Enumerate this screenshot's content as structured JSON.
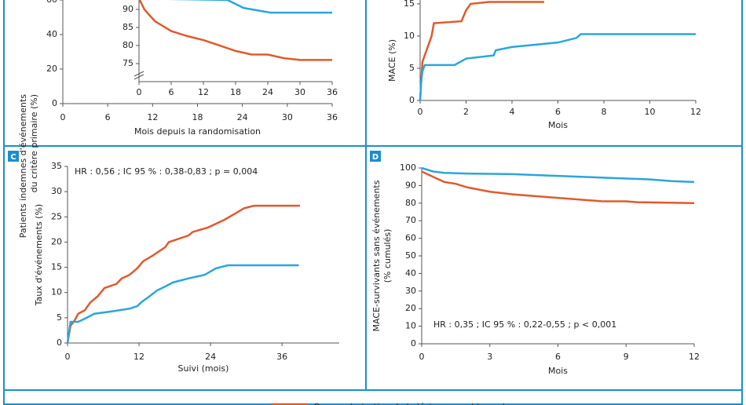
{
  "chart_data": [
    {
      "type": "line",
      "panel": "A",
      "ylabel": [
        "Patients indemnes d'événements",
        "du critère primaire (%)"
      ],
      "xlabel": "Mois depuis la randomisation",
      "xlim": [
        0,
        36
      ],
      "xticks": [
        0,
        6,
        12,
        18,
        24,
        30,
        36
      ],
      "ylim": [
        0,
        60
      ],
      "yticks": [
        0,
        20,
        40,
        60
      ],
      "series": []
    },
    {
      "type": "line",
      "panel": "A-inset",
      "xlim": [
        0,
        36
      ],
      "xticks": [
        0,
        6,
        12,
        18,
        24,
        30,
        36
      ],
      "ylim": [
        70,
        92.6
      ],
      "yticks": [
        75,
        80,
        85,
        90
      ],
      "series": [
        {
          "color": "#e05a2b",
          "x": [
            0,
            1,
            2,
            3,
            6,
            9,
            12,
            15,
            18,
            21,
            24,
            27,
            30,
            36
          ],
          "values": [
            93,
            90,
            88.3,
            86.7,
            84,
            82.6,
            81.5,
            80,
            78.5,
            77.5,
            77.5,
            76.5,
            76,
            76
          ]
        },
        {
          "color": "#2aa6dc",
          "x": [
            0,
            16.5,
            19.5,
            24.5,
            36
          ],
          "values": [
            93,
            92.6,
            90.4,
            89.1,
            89.1
          ]
        }
      ]
    },
    {
      "type": "line",
      "panel": "B",
      "ylabel": [
        "MACE (%)"
      ],
      "xlabel": "Mois",
      "xlim": [
        0,
        12
      ],
      "xticks": [
        0,
        2,
        4,
        6,
        8,
        10,
        12
      ],
      "ylim": [
        0,
        15.6
      ],
      "yticks": [
        0,
        5,
        10,
        15
      ],
      "series": [
        {
          "color": "#e05a2b",
          "x": [
            0,
            0.05,
            0.1,
            0.2,
            0.3,
            0.4,
            0.5,
            0.6,
            1.8,
            2,
            2.2,
            3,
            5.4
          ],
          "values": [
            0,
            3,
            6,
            7,
            8,
            9,
            10,
            12,
            12.3,
            14,
            15,
            15.3,
            15.3
          ]
        },
        {
          "color": "#2aa6dc",
          "x": [
            0,
            0.05,
            0.1,
            0.2,
            1.5,
            2,
            3.2,
            3.3,
            4,
            6,
            6.8,
            7,
            12
          ],
          "values": [
            0,
            3,
            4.5,
            5.5,
            5.5,
            6.5,
            7,
            7.8,
            8.3,
            9,
            9.7,
            10.3,
            10.3
          ]
        }
      ]
    },
    {
      "type": "line",
      "panel": "C",
      "label": "C",
      "ylabel": [
        "Taux d'événements (%)"
      ],
      "xlabel": "Suivi (mois)",
      "annotation": "HR : 0,56 ; IC 95 % : 0,38-0,83 ; p = 0,004",
      "xlim": [
        0,
        45.6
      ],
      "xticks": [
        0,
        12,
        24,
        36
      ],
      "ylim": [
        0,
        35
      ],
      "yticks": [
        0,
        5,
        10,
        15,
        20,
        25,
        30,
        35
      ],
      "series": [
        {
          "color": "#e05a2b",
          "x": [
            0,
            0.5,
            1.2,
            1.8,
            2.9,
            3.8,
            5.1,
            6.2,
            8.2,
            9.1,
            10.4,
            11.7,
            12.7,
            14.4,
            16.4,
            17,
            20.3,
            21,
            23.6,
            26.3,
            28.2,
            29.6,
            31.3,
            39
          ],
          "values": [
            0,
            3.4,
            4.5,
            5.8,
            6.5,
            8,
            9.3,
            10.9,
            11.7,
            12.8,
            13.5,
            14.8,
            16.2,
            17.4,
            19,
            20,
            21.3,
            22,
            22.9,
            24.4,
            25.7,
            26.7,
            27.2,
            27.2
          ]
        },
        {
          "color": "#2aa6dc",
          "x": [
            0,
            0.5,
            1.8,
            3.2,
            4.5,
            7.1,
            10.4,
            11.7,
            12.4,
            13.7,
            15,
            16.4,
            17.7,
            20.3,
            23,
            24.9,
            26.9,
            38.8
          ],
          "values": [
            0,
            4.2,
            4.2,
            5,
            5.8,
            6.2,
            6.8,
            7.3,
            8.1,
            9.2,
            10.4,
            11.2,
            12,
            12.8,
            13.5,
            14.8,
            15.4,
            15.4
          ]
        }
      ]
    },
    {
      "type": "line",
      "panel": "D",
      "label": "D",
      "ylabel": [
        "MACE-survivants sans événements",
        "(% cumulés)"
      ],
      "xlabel": "Mois",
      "annotation": "HR : 0,35 ; IC 95 % : 0,22-0,55 ; p < 0,001",
      "xlim": [
        0,
        12
      ],
      "xticks": [
        0,
        3,
        6,
        9,
        12
      ],
      "ylim": [
        0,
        100
      ],
      "yticks": [
        0,
        10,
        20,
        30,
        40,
        50,
        60,
        70,
        80,
        90,
        100
      ],
      "series": [
        {
          "color": "#2aa6dc",
          "x": [
            0,
            0.5,
            1,
            2,
            4,
            6,
            8,
            10,
            11,
            12
          ],
          "values": [
            100,
            98,
            97.2,
            96.8,
            96.5,
            95.5,
            94.5,
            93.5,
            92.5,
            92
          ]
        },
        {
          "color": "#e05a2b",
          "x": [
            0,
            0.5,
            1,
            1.5,
            2,
            3,
            4,
            6,
            7,
            8,
            9,
            9.5,
            12
          ],
          "values": [
            98,
            95,
            92,
            91,
            89,
            86.5,
            85,
            83,
            82,
            81,
            81,
            80.5,
            80
          ]
        }
      ]
    }
  ],
  "legend": {
    "label": "Revascularisation de la lésion coupable seule",
    "color": "#e05a2b"
  }
}
